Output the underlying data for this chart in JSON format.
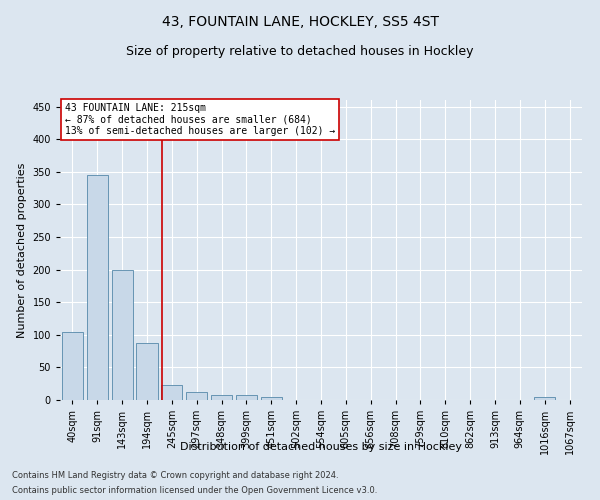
{
  "title": "43, FOUNTAIN LANE, HOCKLEY, SS5 4ST",
  "subtitle": "Size of property relative to detached houses in Hockley",
  "xlabel": "Distribution of detached houses by size in Hockley",
  "ylabel": "Number of detached properties",
  "footnote1": "Contains HM Land Registry data © Crown copyright and database right 2024.",
  "footnote2": "Contains public sector information licensed under the Open Government Licence v3.0.",
  "bins": [
    "40sqm",
    "91sqm",
    "143sqm",
    "194sqm",
    "245sqm",
    "297sqm",
    "348sqm",
    "399sqm",
    "451sqm",
    "502sqm",
    "554sqm",
    "605sqm",
    "656sqm",
    "708sqm",
    "759sqm",
    "810sqm",
    "862sqm",
    "913sqm",
    "964sqm",
    "1016sqm",
    "1067sqm"
  ],
  "values": [
    105,
    345,
    200,
    88,
    23,
    13,
    8,
    8,
    5,
    0,
    0,
    0,
    0,
    0,
    0,
    0,
    0,
    0,
    0,
    4,
    0
  ],
  "bar_color": "#c8d8e8",
  "bar_edge_color": "#5588aa",
  "red_line_x": 3.6,
  "red_line_label": "43 FOUNTAIN LANE: 215sqm",
  "annotation_line1": "← 87% of detached houses are smaller (684)",
  "annotation_line2": "13% of semi-detached houses are larger (102) →",
  "annotation_box_color": "#ffffff",
  "annotation_box_edge_color": "#cc0000",
  "red_line_color": "#cc0000",
  "ylim": [
    0,
    460
  ],
  "yticks": [
    0,
    50,
    100,
    150,
    200,
    250,
    300,
    350,
    400,
    450
  ],
  "background_color": "#dce6f0",
  "grid_color": "#ffffff",
  "title_fontsize": 10,
  "subtitle_fontsize": 9,
  "axis_label_fontsize": 8,
  "tick_fontsize": 7,
  "footnote_fontsize": 6
}
